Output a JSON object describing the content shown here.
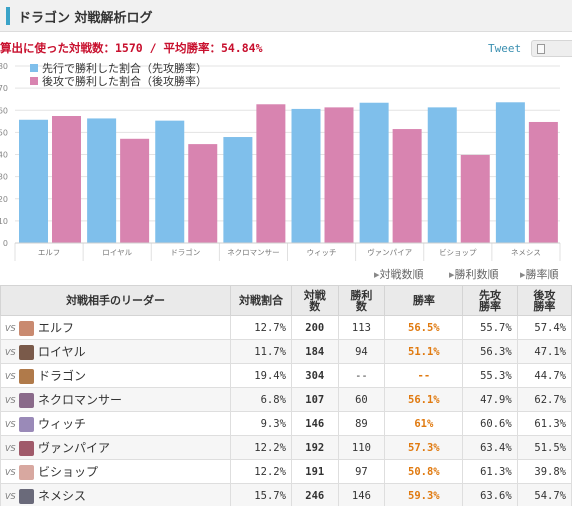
{
  "header": {
    "title": "ドラゴン 対戦解析ログ"
  },
  "stats": {
    "text": "算出に使った対戦数：1570 / 平均勝率：54.84%"
  },
  "share": {
    "tweet_label": "Tweet",
    "print_icon": "print-icon"
  },
  "colors": {
    "first": "#7fbfeb",
    "second": "#d884b0",
    "accent": "#3aa3c8",
    "rate": "#e07a10",
    "stats": "#c8102e"
  },
  "chart_data": {
    "type": "bar",
    "categories": [
      "エルフ",
      "ロイヤル",
      "ドラゴン",
      "ネクロマンサー",
      "ウィッチ",
      "ヴァンパイア",
      "ビショップ",
      "ネメシス"
    ],
    "series": [
      {
        "name": "先行で勝利した割合（先攻勝率）",
        "values": [
          55.7,
          56.3,
          55.3,
          47.9,
          60.6,
          63.4,
          61.3,
          63.6
        ]
      },
      {
        "name": "後攻で勝利した割合（後攻勝率）",
        "values": [
          57.4,
          47.1,
          44.7,
          62.7,
          61.3,
          51.5,
          39.8,
          54.7
        ]
      }
    ],
    "yticks": [
      0,
      10,
      20,
      30,
      40,
      50,
      60,
      70,
      80
    ],
    "ylim": [
      0,
      80
    ],
    "grid": true,
    "legend": "top-left"
  },
  "sort": {
    "by_count": "対戦数順",
    "by_wins": "勝利数順",
    "by_rate": "勝率順"
  },
  "table": {
    "headers": {
      "leader": "対戦相手のリーダー",
      "share": "対戦割合",
      "count": "対戦数",
      "wins": "勝利数",
      "rate": "勝率",
      "first_rate": "先攻勝率",
      "second_rate": "後攻勝率"
    },
    "vs_label": "VS",
    "rows": [
      {
        "name": "エルフ",
        "share": "12.7%",
        "count": "200",
        "wins": "113",
        "rate": "56.5%",
        "first_rate": "55.7%",
        "second_rate": "57.4%",
        "avatar": "#c98a70"
      },
      {
        "name": "ロイヤル",
        "share": "11.7%",
        "count": "184",
        "wins": "94",
        "rate": "51.1%",
        "first_rate": "56.3%",
        "second_rate": "47.1%",
        "avatar": "#7a5a4a"
      },
      {
        "name": "ドラゴン",
        "share": "19.4%",
        "count": "304",
        "wins": "--",
        "rate": "--",
        "first_rate": "55.3%",
        "second_rate": "44.7%",
        "avatar": "#b07a4a"
      },
      {
        "name": "ネクロマンサー",
        "share": "6.8%",
        "count": "107",
        "wins": "60",
        "rate": "56.1%",
        "first_rate": "47.9%",
        "second_rate": "62.7%",
        "avatar": "#8a6a8a"
      },
      {
        "name": "ウィッチ",
        "share": "9.3%",
        "count": "146",
        "wins": "89",
        "rate": "61%",
        "first_rate": "60.6%",
        "second_rate": "61.3%",
        "avatar": "#9a8ab8"
      },
      {
        "name": "ヴァンパイア",
        "share": "12.2%",
        "count": "192",
        "wins": "110",
        "rate": "57.3%",
        "first_rate": "63.4%",
        "second_rate": "51.5%",
        "avatar": "#a05a6a"
      },
      {
        "name": "ビショップ",
        "share": "12.2%",
        "count": "191",
        "wins": "97",
        "rate": "50.8%",
        "first_rate": "61.3%",
        "second_rate": "39.8%",
        "avatar": "#d8a8a0"
      },
      {
        "name": "ネメシス",
        "share": "15.7%",
        "count": "246",
        "wins": "146",
        "rate": "59.3%",
        "first_rate": "63.6%",
        "second_rate": "54.7%",
        "avatar": "#6a6a7a"
      }
    ]
  }
}
